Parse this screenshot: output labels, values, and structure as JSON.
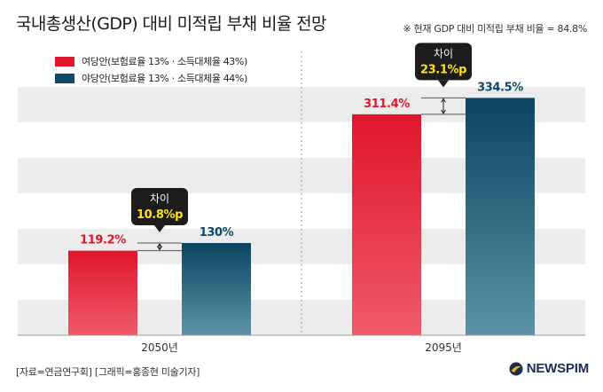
{
  "title": "국내총생산(GDP) 대비 미적립 부채 비율 전망",
  "note": "※ 현재 GDP 대비 미적립 부채 비율 = 84.8%",
  "source": "[자료=연금연구회] [그래픽=홍종현 미술기자]",
  "brand": "NEWSPIM",
  "colors": {
    "series_1": "#e0162b",
    "series_2": "#0c4a66",
    "band": "#ececec",
    "callout_bg": "#1c1c1c",
    "callout_value": "#ffe21a"
  },
  "chart_data": {
    "type": "bar",
    "title": "국내총생산(GDP) 대비 미적립 부채 비율 전망",
    "categories": [
      "2050년",
      "2095년"
    ],
    "series": [
      {
        "name": "여당안(보험료율 13%ㆍ소득대체율 43%)",
        "values": [
          119.2,
          311.4
        ],
        "labels": [
          "119.2%",
          "311.4%"
        ]
      },
      {
        "name": "야당안(보험료율 13%ㆍ소득대체율 44%)",
        "values": [
          130,
          334.5
        ],
        "labels": [
          "130%",
          "334.5%"
        ]
      }
    ],
    "callouts": [
      {
        "category": "2050년",
        "label": "차이",
        "value": "10.8%p"
      },
      {
        "category": "2095년",
        "label": "차이",
        "value": "23.1%p"
      }
    ],
    "ylim": [
      0,
      400
    ],
    "xlabel": "",
    "ylabel": "",
    "legend": "top-left",
    "grid": "alternating-bands"
  }
}
